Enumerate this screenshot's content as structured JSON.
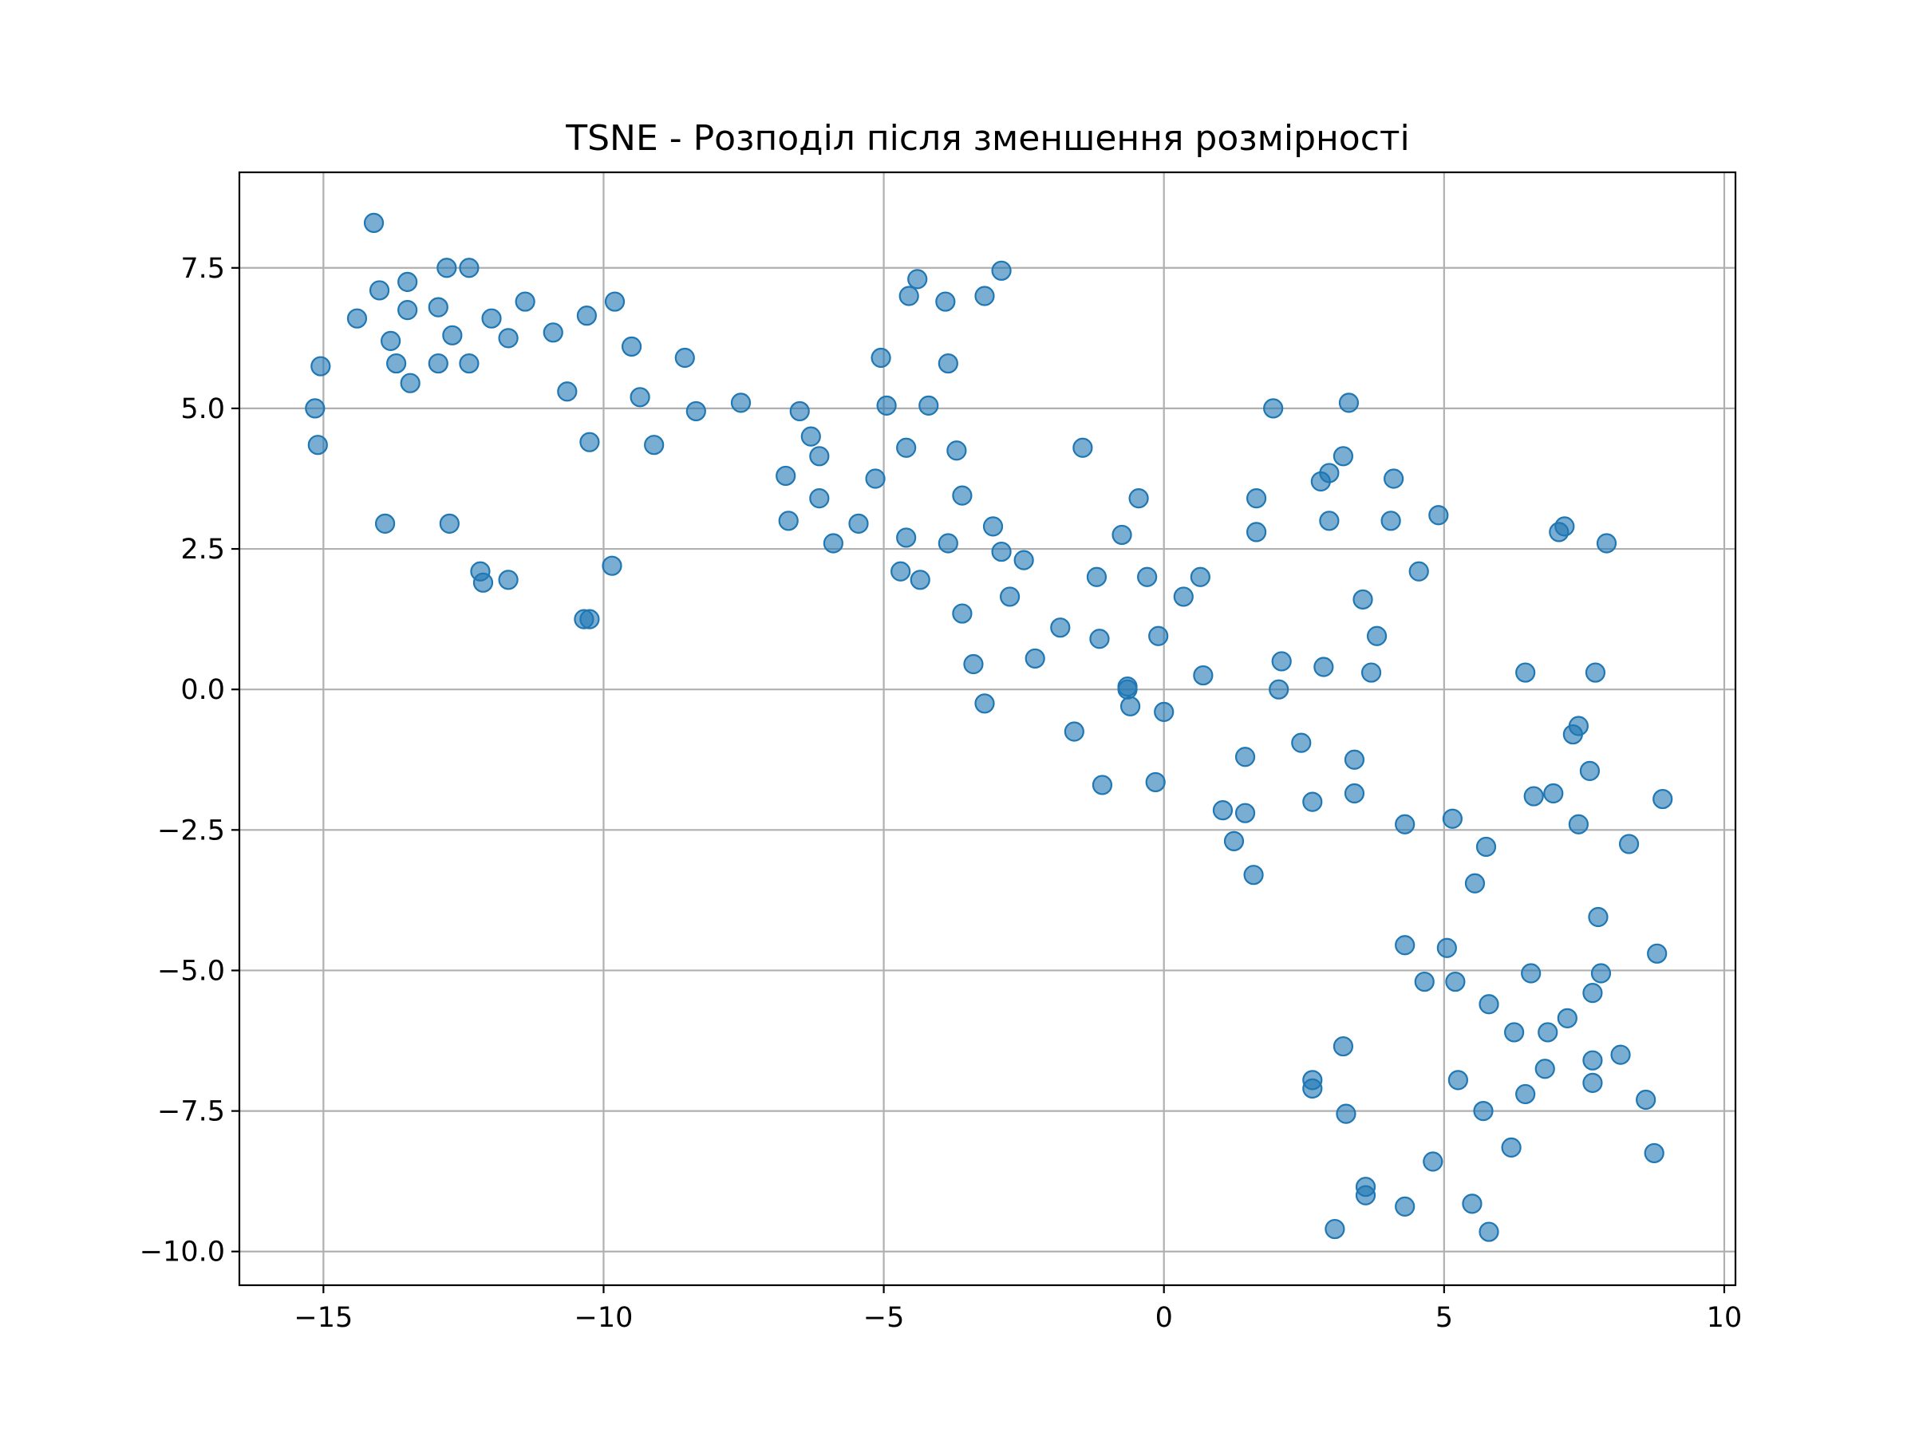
{
  "chart_data": {
    "type": "scatter",
    "title": "TSNE - Розподіл після зменшення розмірності",
    "xlabel": "",
    "ylabel": "",
    "xlim": [
      -16.5,
      10.2
    ],
    "ylim": [
      -10.6,
      9.2
    ],
    "xticks": [
      -15,
      -10,
      -5,
      0,
      5,
      10
    ],
    "xtick_labels": [
      "−15",
      "−10",
      "−5",
      "0",
      "5",
      "10"
    ],
    "yticks": [
      -10.0,
      -7.5,
      -5.0,
      -2.5,
      0.0,
      2.5,
      5.0,
      7.5
    ],
    "ytick_labels": [
      "−10.0",
      "−7.5",
      "−5.0",
      "−2.5",
      "0.0",
      "2.5",
      "5.0",
      "7.5"
    ],
    "grid": true,
    "marker_color": "#1f77b4",
    "marker_alpha": 0.6,
    "series": [
      {
        "points": [
          [
            -14.1,
            8.3
          ],
          [
            -14.0,
            7.1
          ],
          [
            -13.5,
            7.25
          ],
          [
            -12.8,
            7.5
          ],
          [
            -12.4,
            7.5
          ],
          [
            -14.4,
            6.6
          ],
          [
            -13.5,
            6.75
          ],
          [
            -12.95,
            6.8
          ],
          [
            -13.8,
            6.2
          ],
          [
            -12.7,
            6.3
          ],
          [
            -12.0,
            6.6
          ],
          [
            -11.7,
            6.25
          ],
          [
            -11.4,
            6.9
          ],
          [
            -10.9,
            6.35
          ],
          [
            -10.3,
            6.65
          ],
          [
            -9.8,
            6.9
          ],
          [
            -13.7,
            5.8
          ],
          [
            -12.95,
            5.8
          ],
          [
            -12.4,
            5.8
          ],
          [
            -13.45,
            5.45
          ],
          [
            -15.05,
            5.75
          ],
          [
            -15.15,
            5.0
          ],
          [
            -15.1,
            4.35
          ],
          [
            -10.65,
            5.3
          ],
          [
            -9.5,
            6.1
          ],
          [
            -9.35,
            5.2
          ],
          [
            -10.25,
            4.4
          ],
          [
            -9.1,
            4.35
          ],
          [
            -8.55,
            5.9
          ],
          [
            -8.35,
            4.95
          ],
          [
            -7.55,
            5.1
          ],
          [
            -13.9,
            2.95
          ],
          [
            -12.75,
            2.95
          ],
          [
            -12.2,
            2.1
          ],
          [
            -12.15,
            1.9
          ],
          [
            -11.7,
            1.95
          ],
          [
            -9.85,
            2.2
          ],
          [
            -10.35,
            1.25
          ],
          [
            -10.25,
            1.25
          ],
          [
            -6.5,
            4.95
          ],
          [
            -6.3,
            4.5
          ],
          [
            -6.15,
            4.15
          ],
          [
            -6.75,
            3.8
          ],
          [
            -6.7,
            3.0
          ],
          [
            -6.15,
            3.4
          ],
          [
            -5.9,
            2.6
          ],
          [
            -5.45,
            2.95
          ],
          [
            -5.15,
            3.75
          ],
          [
            -5.05,
            5.9
          ],
          [
            -4.95,
            5.05
          ],
          [
            -4.6,
            4.3
          ],
          [
            -4.55,
            7.0
          ],
          [
            -4.4,
            7.3
          ],
          [
            -3.9,
            6.9
          ],
          [
            -3.2,
            7.0
          ],
          [
            -2.9,
            7.45
          ],
          [
            -3.85,
            5.8
          ],
          [
            -4.2,
            5.05
          ],
          [
            -3.7,
            4.25
          ],
          [
            -3.6,
            3.45
          ],
          [
            -4.6,
            2.7
          ],
          [
            -3.85,
            2.6
          ],
          [
            -4.7,
            2.1
          ],
          [
            -4.35,
            1.95
          ],
          [
            -3.6,
            1.35
          ],
          [
            -3.05,
            2.9
          ],
          [
            -2.9,
            2.45
          ],
          [
            -2.5,
            2.3
          ],
          [
            -2.75,
            1.65
          ],
          [
            -3.4,
            0.45
          ],
          [
            -3.2,
            -0.25
          ],
          [
            -2.3,
            0.55
          ],
          [
            -1.85,
            1.1
          ],
          [
            -1.6,
            -0.75
          ],
          [
            -1.45,
            4.3
          ],
          [
            -1.2,
            2.0
          ],
          [
            -1.15,
            0.9
          ],
          [
            -1.1,
            -1.7
          ],
          [
            -0.75,
            2.75
          ],
          [
            -0.65,
            0.0
          ],
          [
            -0.6,
            -0.3
          ],
          [
            -0.45,
            3.4
          ],
          [
            -0.3,
            2.0
          ],
          [
            -0.15,
            -1.65
          ],
          [
            -0.1,
            0.95
          ],
          [
            0.0,
            -0.4
          ],
          [
            0.35,
            1.65
          ],
          [
            0.65,
            2.0
          ],
          [
            0.7,
            0.25
          ],
          [
            1.05,
            -2.15
          ],
          [
            1.25,
            -2.7
          ],
          [
            1.45,
            -1.2
          ],
          [
            1.45,
            -2.2
          ],
          [
            1.6,
            -3.3
          ],
          [
            1.65,
            3.4
          ],
          [
            1.65,
            2.8
          ],
          [
            1.95,
            5.0
          ],
          [
            2.05,
            0.0
          ],
          [
            2.1,
            0.5
          ],
          [
            2.45,
            -0.95
          ],
          [
            2.65,
            -2.0
          ],
          [
            2.8,
            3.7
          ],
          [
            2.85,
            0.4
          ],
          [
            2.95,
            3.85
          ],
          [
            2.95,
            3.0
          ],
          [
            3.2,
            4.15
          ],
          [
            3.3,
            5.1
          ],
          [
            3.4,
            -1.25
          ],
          [
            3.4,
            -1.85
          ],
          [
            3.55,
            1.6
          ],
          [
            3.7,
            0.3
          ],
          [
            3.8,
            0.95
          ],
          [
            4.05,
            3.0
          ],
          [
            4.1,
            3.75
          ],
          [
            4.3,
            -2.4
          ],
          [
            4.3,
            -4.55
          ],
          [
            4.55,
            2.1
          ],
          [
            4.65,
            -5.2
          ],
          [
            4.8,
            -8.4
          ],
          [
            4.9,
            3.1
          ],
          [
            5.05,
            -4.6
          ],
          [
            5.15,
            -2.3
          ],
          [
            5.2,
            -5.2
          ],
          [
            5.25,
            -6.95
          ],
          [
            5.5,
            -9.15
          ],
          [
            5.55,
            -3.45
          ],
          [
            5.7,
            -7.5
          ],
          [
            5.75,
            -2.8
          ],
          [
            5.8,
            -5.6
          ],
          [
            5.8,
            -9.65
          ],
          [
            6.2,
            -8.15
          ],
          [
            6.25,
            -6.1
          ],
          [
            6.45,
            -7.2
          ],
          [
            6.45,
            0.3
          ],
          [
            6.55,
            -5.05
          ],
          [
            6.6,
            -1.9
          ],
          [
            6.8,
            -6.75
          ],
          [
            6.85,
            -6.1
          ],
          [
            6.95,
            -1.85
          ],
          [
            7.05,
            2.8
          ],
          [
            7.15,
            2.9
          ],
          [
            7.2,
            -5.85
          ],
          [
            7.3,
            -0.8
          ],
          [
            7.4,
            -0.65
          ],
          [
            7.4,
            -2.4
          ],
          [
            7.6,
            -1.45
          ],
          [
            7.65,
            -5.4
          ],
          [
            7.65,
            -6.6
          ],
          [
            7.65,
            -7.0
          ],
          [
            7.7,
            0.3
          ],
          [
            7.75,
            -4.05
          ],
          [
            7.8,
            -5.05
          ],
          [
            7.9,
            2.6
          ],
          [
            8.15,
            -6.5
          ],
          [
            8.3,
            -2.75
          ],
          [
            8.6,
            -7.3
          ],
          [
            8.75,
            -8.25
          ],
          [
            8.8,
            -4.7
          ],
          [
            8.9,
            -1.95
          ],
          [
            3.05,
            -9.6
          ],
          [
            3.2,
            -6.35
          ],
          [
            3.25,
            -7.55
          ],
          [
            3.6,
            -8.85
          ],
          [
            3.6,
            -9.0
          ],
          [
            4.3,
            -9.2
          ],
          [
            2.65,
            -7.1
          ],
          [
            2.65,
            -6.95
          ],
          [
            -0.65,
            0.05
          ]
        ]
      }
    ]
  }
}
